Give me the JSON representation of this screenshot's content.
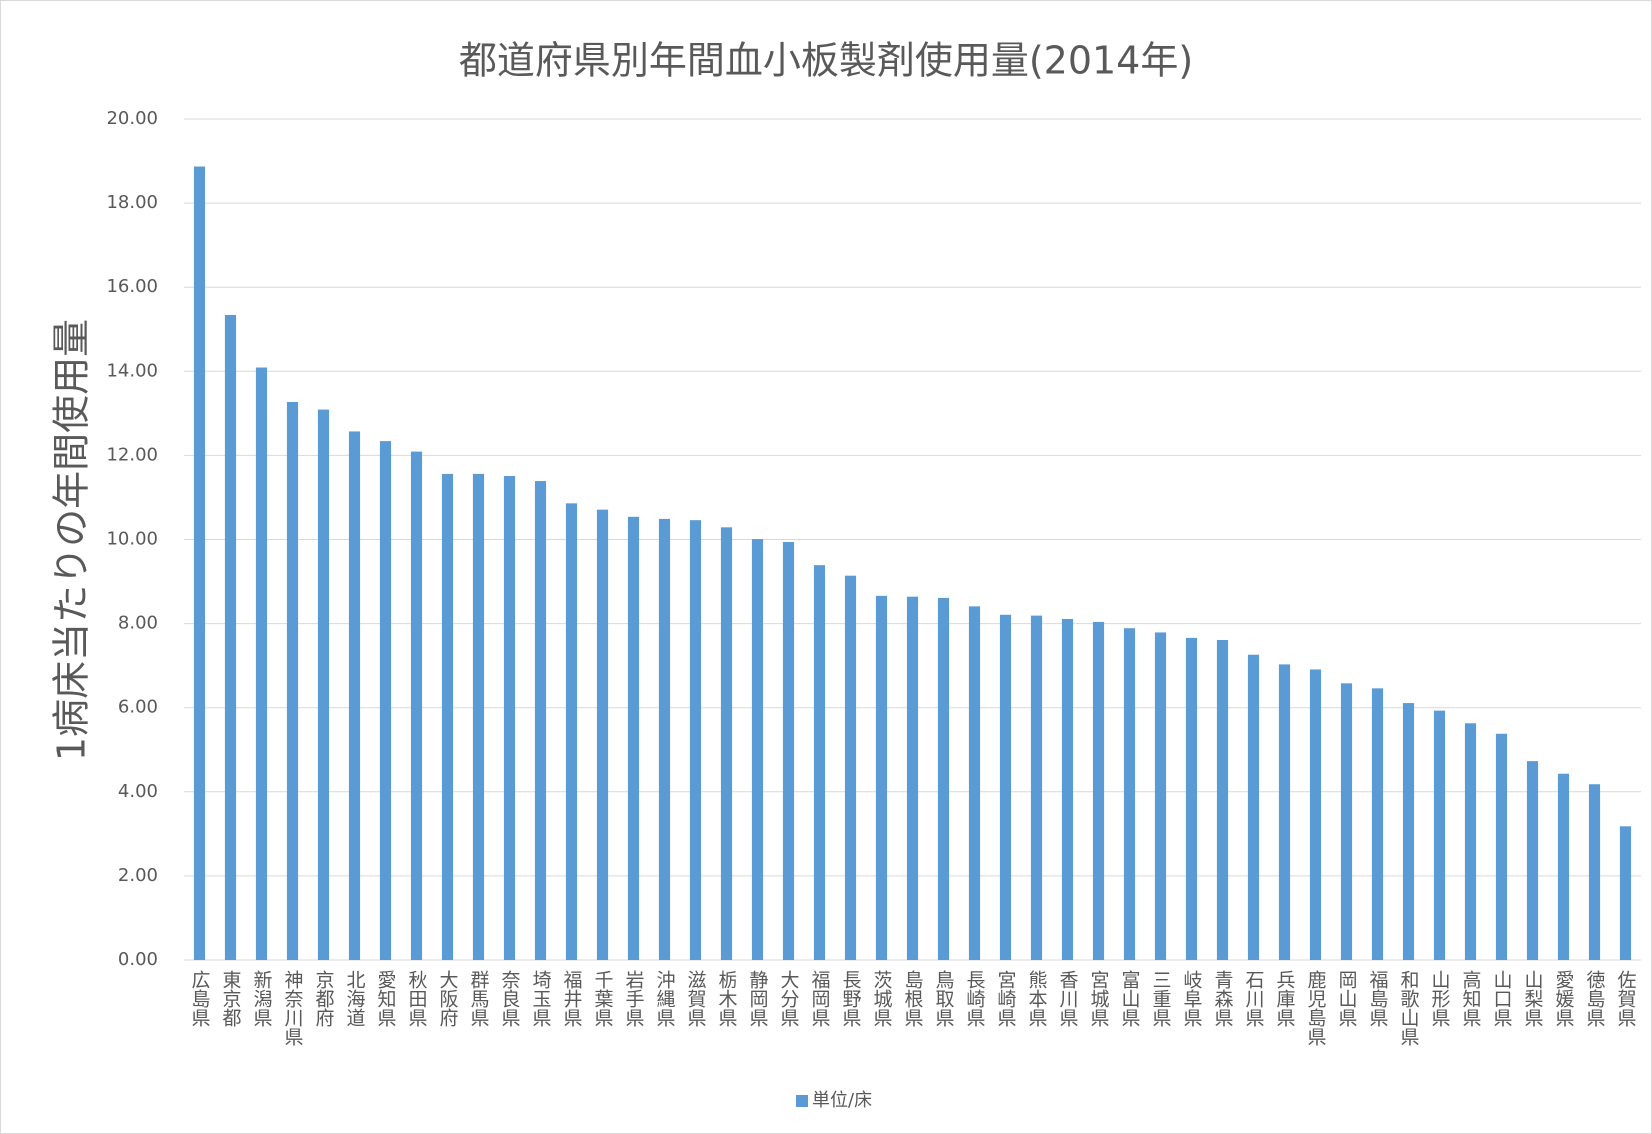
{
  "chart_data": {
    "type": "bar",
    "title": "都道府県別年間血小板製剤使用量(2014年)",
    "y_label": "1病床当たりの年間使用量",
    "categories": [
      "広島県",
      "東京都",
      "新潟県",
      "神奈川県",
      "京都府",
      "北海道",
      "愛知県",
      "秋田県",
      "大阪府",
      "群馬県",
      "奈良県",
      "埼玉県",
      "福井県",
      "千葉県",
      "岩手県",
      "沖縄県",
      "滋賀県",
      "栃木県",
      "静岡県",
      "大分県",
      "福岡県",
      "長野県",
      "茨城県",
      "島根県",
      "鳥取県",
      "長崎県",
      "宮崎県",
      "熊本県",
      "香川県",
      "宮城県",
      "富山県",
      "三重県",
      "岐阜県",
      "青森県",
      "石川県",
      "兵庫県",
      "鹿児島県",
      "岡山県",
      "福島県",
      "和歌山県",
      "山形県",
      "高知県",
      "山口県",
      "山梨県",
      "愛媛県",
      "徳島県",
      "佐賀県"
    ],
    "series": [
      {
        "name": "単位/床",
        "color": "#5b9bd5",
        "values": [
          18.87,
          15.34,
          14.09,
          13.27,
          13.09,
          12.57,
          12.34,
          12.09,
          11.56,
          11.56,
          11.51,
          11.39,
          10.86,
          10.71,
          10.54,
          10.49,
          10.46,
          10.29,
          10.01,
          9.94,
          9.39,
          9.14,
          8.66,
          8.64,
          8.61,
          8.41,
          8.21,
          8.19,
          8.11,
          8.04,
          7.89,
          7.79,
          7.66,
          7.61,
          7.26,
          7.03,
          6.91,
          6.58,
          6.46,
          6.11,
          5.93,
          5.63,
          5.38,
          4.73,
          4.43,
          4.18,
          3.18
        ]
      }
    ],
    "ylim": [
      0,
      20
    ],
    "yticks": [
      {
        "value": 0,
        "label": "0.00"
      },
      {
        "value": 2,
        "label": "2.00"
      },
      {
        "value": 4,
        "label": "4.00"
      },
      {
        "value": 6,
        "label": "6.00"
      },
      {
        "value": 8,
        "label": "8.00"
      },
      {
        "value": 10,
        "label": "10.00"
      },
      {
        "value": 12,
        "label": "12.00"
      },
      {
        "value": 14,
        "label": "14.00"
      },
      {
        "value": 16,
        "label": "16.00"
      },
      {
        "value": 18,
        "label": "18.00"
      },
      {
        "value": 20,
        "label": "20.00"
      }
    ],
    "grid": true,
    "legend": "bottom"
  }
}
